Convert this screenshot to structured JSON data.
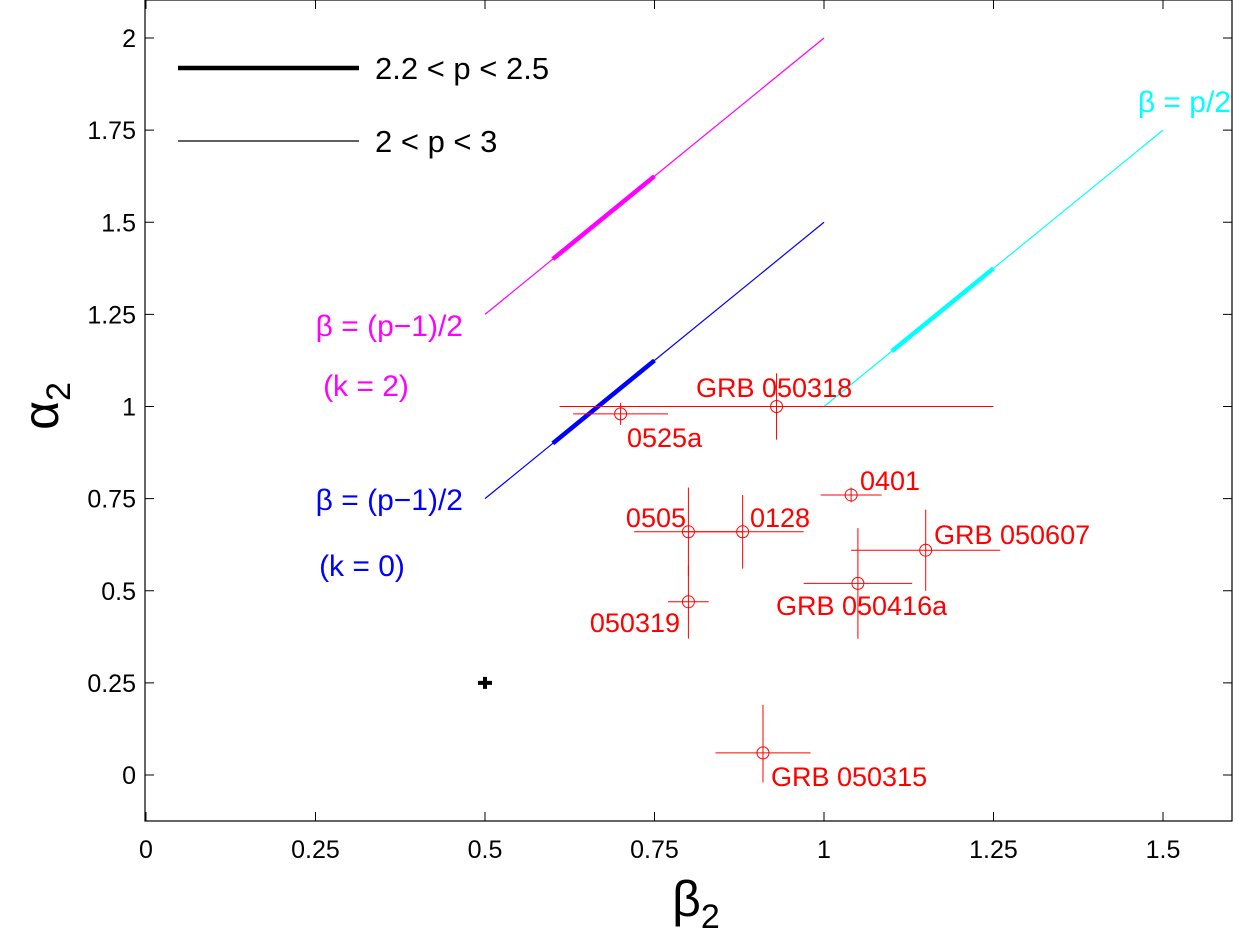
{
  "chart_data": {
    "type": "scatter",
    "xlabel": "β",
    "xlabel_sub": "2",
    "ylabel": "α",
    "ylabel_sub": "2",
    "xlim": [
      0,
      1.6
    ],
    "ylim": [
      -0.1,
      2.1
    ],
    "xticks": [
      0,
      0.25,
      0.5,
      0.75,
      1,
      1.25,
      1.5
    ],
    "xtick_labels": [
      "0",
      "0.25",
      "0.5",
      "0.75",
      "1",
      "1.25",
      "1.5"
    ],
    "yticks": [
      0,
      0.25,
      0.5,
      0.75,
      1,
      1.25,
      1.5,
      1.75,
      2
    ],
    "ytick_labels": [
      "0",
      "0.25",
      "0.5",
      "0.75",
      "1",
      "1.25",
      "1.5",
      "1.75",
      "2"
    ],
    "legend": [
      {
        "label": "2.2 < p < 2.5",
        "style": "thick",
        "color": "#000000"
      },
      {
        "label": "2 < p < 3",
        "style": "thin",
        "color": "#000000"
      }
    ],
    "relations": [
      {
        "color": "#ff00ff",
        "label1": "β = (p−1)/2",
        "label2": "(k = 2)",
        "thin": [
          [
            0.5,
            1.25
          ],
          [
            1.0,
            2.0
          ]
        ],
        "thick": [
          [
            0.6,
            1.4
          ],
          [
            0.75,
            1.625
          ]
        ]
      },
      {
        "color": "#0000ff",
        "label1": "β = (p−1)/2",
        "label2": "(k = 0)",
        "thin": [
          [
            0.5,
            0.75
          ],
          [
            1.0,
            1.5
          ]
        ],
        "thick": [
          [
            0.6,
            0.9
          ],
          [
            0.75,
            1.125
          ]
        ]
      },
      {
        "color": "#00ffff",
        "label1": "β = p/2",
        "label2": "",
        "thin": [
          [
            1.0,
            1.0
          ],
          [
            1.5,
            1.75
          ]
        ],
        "thick": [
          [
            1.1,
            1.15
          ],
          [
            1.25,
            1.375
          ]
        ]
      }
    ],
    "points": [
      {
        "label": "GRB 050318",
        "x": 0.93,
        "y": 1.0,
        "xerr": [
          0.32,
          0.32
        ],
        "yerr": [
          0.09,
          0.09
        ]
      },
      {
        "label": "0525a",
        "x": 0.7,
        "y": 0.98,
        "xerr": [
          0.07,
          0.07
        ],
        "yerr": [
          0.03,
          0.03
        ]
      },
      {
        "label": "0401",
        "x": 1.04,
        "y": 0.76,
        "xerr": [
          0.045,
          0.045
        ],
        "yerr": [
          0.02,
          0.02
        ]
      },
      {
        "label": "0505",
        "x": 0.8,
        "y": 0.66,
        "xerr": [
          0.08,
          0.08
        ],
        "yerr": [
          0.12,
          0.12
        ]
      },
      {
        "label": "0128",
        "x": 0.88,
        "y": 0.66,
        "xerr": [
          0.09,
          0.09
        ],
        "yerr": [
          0.1,
          0.1
        ]
      },
      {
        "label": "GRB 050607",
        "x": 1.15,
        "y": 0.61,
        "xerr": [
          0.11,
          0.11
        ],
        "yerr": [
          0.11,
          0.11
        ]
      },
      {
        "label": "GRB 050416a",
        "x": 1.05,
        "y": 0.52,
        "xerr": [
          0.08,
          0.08
        ],
        "yerr": [
          0.15,
          0.15
        ]
      },
      {
        "label": "050319",
        "x": 0.8,
        "y": 0.47,
        "xerr": [
          0.03,
          0.03
        ],
        "yerr": [
          0.1,
          0.1
        ]
      },
      {
        "label": "GRB 050315",
        "x": 0.91,
        "y": 0.06,
        "xerr": [
          0.07,
          0.07
        ],
        "yerr": [
          0.08,
          0.13
        ]
      }
    ],
    "reference_point": {
      "x": 0.5,
      "y": 0.25,
      "color": "#000000"
    },
    "point_color": "#ff0000"
  }
}
